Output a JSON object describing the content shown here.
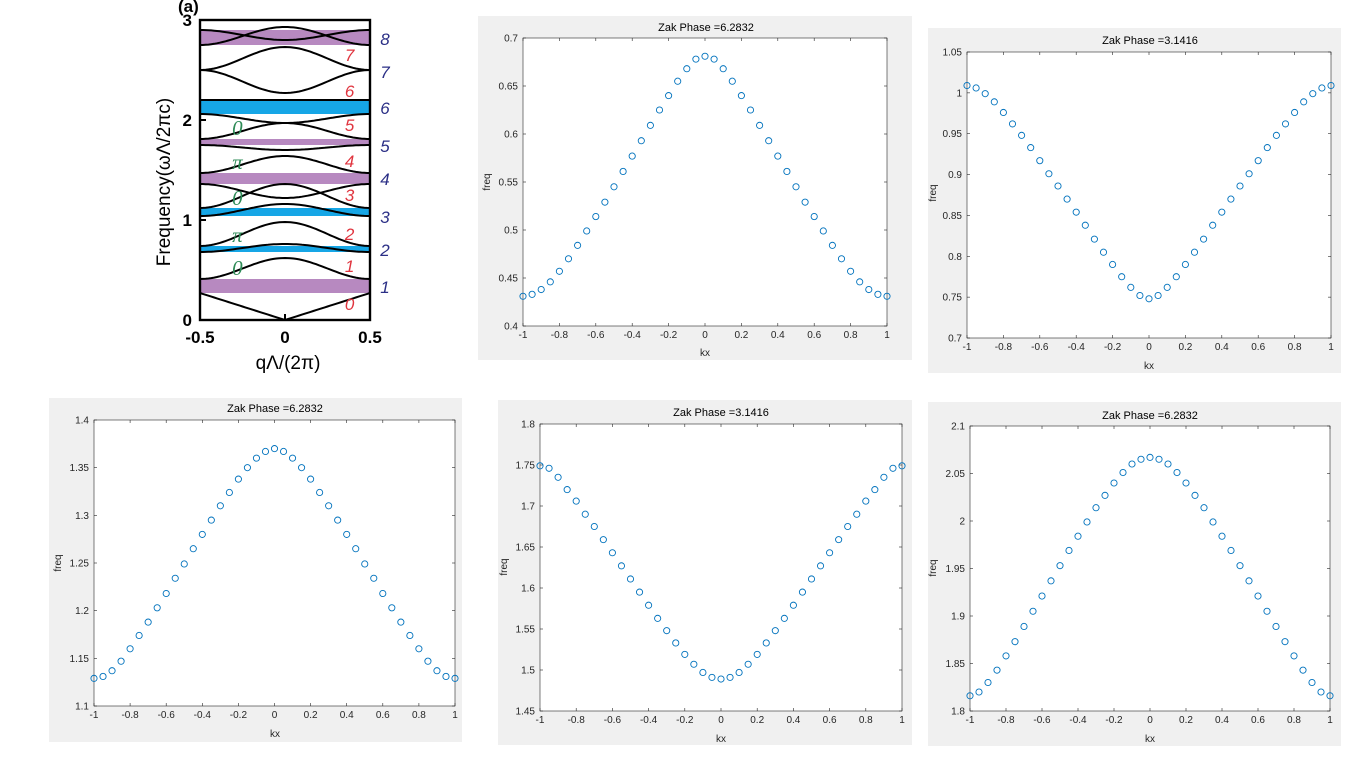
{
  "band_diagram": {
    "corner_label": "(a)",
    "ylabel": "Frequency(ωΛ/2πc)",
    "xlabel": "qΛ/(2π)",
    "x_ticks": [
      "-0.5",
      "0",
      "0.5"
    ],
    "y_ticks": [
      "0",
      "1",
      "2",
      "3"
    ],
    "xlim": [
      -0.5,
      0.5
    ],
    "ylim": [
      0,
      3
    ],
    "gap_colors": {
      "pink": "#b789c0",
      "blue": "#16a6e6"
    },
    "gaps": [
      {
        "lo": 0.27,
        "hi": 0.41,
        "color": "pink"
      },
      {
        "lo": 0.68,
        "hi": 0.74,
        "color": "blue"
      },
      {
        "lo": 1.04,
        "hi": 1.12,
        "color": "blue"
      },
      {
        "lo": 1.36,
        "hi": 1.47,
        "color": "pink"
      },
      {
        "lo": 1.75,
        "hi": 1.81,
        "color": "pink"
      },
      {
        "lo": 2.06,
        "hi": 2.2,
        "color": "blue"
      },
      {
        "lo": 2.75,
        "hi": 2.9,
        "color": "pink"
      }
    ],
    "bands": [
      {
        "edge": 0.27,
        "center": 0.0
      },
      {
        "edge": 0.41,
        "center": 0.62
      },
      {
        "edge": 0.68,
        "center": 0.76
      },
      {
        "edge": 0.74,
        "center": 0.98
      },
      {
        "edge": 1.04,
        "center": 1.16
      },
      {
        "edge": 1.12,
        "center": 1.36
      },
      {
        "edge": 1.36,
        "center": 1.22
      },
      {
        "edge": 1.47,
        "center": 1.64
      },
      {
        "edge": 1.75,
        "center": 1.7
      },
      {
        "edge": 1.81,
        "center": 1.97
      },
      {
        "edge": 2.06,
        "center": 1.97
      },
      {
        "edge": 2.2,
        "center": 2.2
      },
      {
        "edge": 2.5,
        "center": 2.73
      },
      {
        "edge": 2.5,
        "center": 2.27
      },
      {
        "edge": 2.75,
        "center": 2.93
      },
      {
        "edge": 2.9,
        "center": 2.8
      }
    ],
    "band_index_labels": [
      {
        "text": "0",
        "y": 0.16
      },
      {
        "text": "1",
        "y": 0.54
      },
      {
        "text": "2",
        "y": 0.86
      },
      {
        "text": "3",
        "y": 1.25
      },
      {
        "text": "4",
        "y": 1.59
      },
      {
        "text": "5",
        "y": 1.95
      },
      {
        "text": "6",
        "y": 2.29
      },
      {
        "text": "7",
        "y": 2.65
      }
    ],
    "gap_index_labels": [
      {
        "text": "1",
        "y": 0.34
      },
      {
        "text": "2",
        "y": 0.71
      },
      {
        "text": "3",
        "y": 1.04
      },
      {
        "text": "4",
        "y": 1.42
      },
      {
        "text": "5",
        "y": 1.75
      },
      {
        "text": "6",
        "y": 2.13
      },
      {
        "text": "7",
        "y": 2.49
      },
      {
        "text": "8",
        "y": 2.82
      }
    ],
    "zak_labels": [
      {
        "text": "0",
        "y": 0.52
      },
      {
        "text": "π",
        "y": 0.85
      },
      {
        "text": "0",
        "y": 1.22
      },
      {
        "text": "π",
        "y": 1.58
      },
      {
        "text": "0",
        "y": 1.92
      }
    ]
  },
  "chart_data": [
    {
      "type": "scatter",
      "title": "Zak Phase =6.2832",
      "xlabel": "kx",
      "ylabel": "freq",
      "xlim": [
        -1,
        1
      ],
      "ylim": [
        0.4,
        0.7
      ],
      "x_ticks": [
        "-1",
        "-0.8",
        "-0.6",
        "-0.4",
        "-0.2",
        "0",
        "0.2",
        "0.4",
        "0.6",
        "0.8",
        "1"
      ],
      "y_ticks": [
        "0.4",
        "0.45",
        "0.5",
        "0.55",
        "0.6",
        "0.65",
        "0.7"
      ],
      "y_tick_values": [
        0.4,
        0.45,
        0.5,
        0.55,
        0.6,
        0.65,
        0.7
      ],
      "x_points": [
        -1,
        -0.95,
        -0.9,
        -0.85,
        -0.8,
        -0.75,
        -0.7,
        -0.65,
        -0.6,
        -0.55,
        -0.5,
        -0.45,
        -0.4,
        -0.35,
        -0.3,
        -0.25,
        -0.2,
        -0.15,
        -0.1,
        -0.05,
        0,
        0.05,
        0.1,
        0.15,
        0.2,
        0.25,
        0.3,
        0.35,
        0.4,
        0.45,
        0.5,
        0.55,
        0.6,
        0.65,
        0.7,
        0.75,
        0.8,
        0.85,
        0.9,
        0.95,
        1
      ],
      "y_points": [
        0.431,
        0.433,
        0.438,
        0.446,
        0.457,
        0.47,
        0.484,
        0.499,
        0.514,
        0.529,
        0.545,
        0.561,
        0.577,
        0.593,
        0.609,
        0.625,
        0.64,
        0.655,
        0.668,
        0.678,
        0.681,
        0.678,
        0.668,
        0.655,
        0.64,
        0.625,
        0.609,
        0.593,
        0.577,
        0.561,
        0.545,
        0.529,
        0.514,
        0.499,
        0.484,
        0.47,
        0.457,
        0.446,
        0.438,
        0.433,
        0.431
      ]
    },
    {
      "type": "scatter",
      "title": "Zak Phase =3.1416",
      "xlabel": "kx",
      "ylabel": "freq",
      "xlim": [
        -1,
        1
      ],
      "ylim": [
        0.7,
        1.05
      ],
      "x_ticks": [
        "-1",
        "-0.8",
        "-0.6",
        "-0.4",
        "-0.2",
        "0",
        "0.2",
        "0.4",
        "0.6",
        "0.8",
        "1"
      ],
      "y_ticks": [
        "0.7",
        "0.75",
        "0.8",
        "0.85",
        "0.9",
        "0.95",
        "1",
        "1.05"
      ],
      "y_tick_values": [
        0.7,
        0.75,
        0.8,
        0.85,
        0.9,
        0.95,
        1.0,
        1.05
      ],
      "x_points": [
        -1,
        -0.95,
        -0.9,
        -0.85,
        -0.8,
        -0.75,
        -0.7,
        -0.65,
        -0.6,
        -0.55,
        -0.5,
        -0.45,
        -0.4,
        -0.35,
        -0.3,
        -0.25,
        -0.2,
        -0.15,
        -0.1,
        -0.05,
        0,
        0.05,
        0.1,
        0.15,
        0.2,
        0.25,
        0.3,
        0.35,
        0.4,
        0.45,
        0.5,
        0.55,
        0.6,
        0.65,
        0.7,
        0.75,
        0.8,
        0.85,
        0.9,
        0.95,
        1
      ],
      "y_points": [
        1.009,
        1.006,
        0.999,
        0.989,
        0.976,
        0.962,
        0.948,
        0.933,
        0.917,
        0.901,
        0.886,
        0.87,
        0.854,
        0.838,
        0.821,
        0.805,
        0.79,
        0.775,
        0.762,
        0.752,
        0.748,
        0.752,
        0.762,
        0.775,
        0.79,
        0.805,
        0.821,
        0.838,
        0.854,
        0.87,
        0.886,
        0.901,
        0.917,
        0.933,
        0.948,
        0.962,
        0.976,
        0.989,
        0.999,
        1.006,
        1.009
      ]
    },
    {
      "type": "scatter",
      "title": "Zak Phase =6.2832",
      "xlabel": "kx",
      "ylabel": "freq",
      "xlim": [
        -1,
        1
      ],
      "ylim": [
        1.1,
        1.4
      ],
      "x_ticks": [
        "-1",
        "-0.8",
        "-0.6",
        "-0.4",
        "-0.2",
        "0",
        "0.2",
        "0.4",
        "0.6",
        "0.8",
        "1"
      ],
      "y_ticks": [
        "1.1",
        "1.15",
        "1.2",
        "1.25",
        "1.3",
        "1.35",
        "1.4"
      ],
      "y_tick_values": [
        1.1,
        1.15,
        1.2,
        1.25,
        1.3,
        1.35,
        1.4
      ],
      "x_points": [
        -1,
        -0.95,
        -0.9,
        -0.85,
        -0.8,
        -0.75,
        -0.7,
        -0.65,
        -0.6,
        -0.55,
        -0.5,
        -0.45,
        -0.4,
        -0.35,
        -0.3,
        -0.25,
        -0.2,
        -0.15,
        -0.1,
        -0.05,
        0,
        0.05,
        0.1,
        0.15,
        0.2,
        0.25,
        0.3,
        0.35,
        0.4,
        0.45,
        0.5,
        0.55,
        0.6,
        0.65,
        0.7,
        0.75,
        0.8,
        0.85,
        0.9,
        0.95,
        1
      ],
      "y_points": [
        1.129,
        1.131,
        1.137,
        1.147,
        1.16,
        1.174,
        1.188,
        1.203,
        1.218,
        1.234,
        1.249,
        1.265,
        1.28,
        1.295,
        1.31,
        1.324,
        1.338,
        1.35,
        1.36,
        1.367,
        1.37,
        1.367,
        1.36,
        1.35,
        1.338,
        1.324,
        1.31,
        1.295,
        1.28,
        1.265,
        1.249,
        1.234,
        1.218,
        1.203,
        1.188,
        1.174,
        1.16,
        1.147,
        1.137,
        1.131,
        1.129
      ]
    },
    {
      "type": "scatter",
      "title": "Zak Phase =3.1416",
      "xlabel": "kx",
      "ylabel": "freq",
      "xlim": [
        -1,
        1
      ],
      "ylim": [
        1.45,
        1.8
      ],
      "x_ticks": [
        "-1",
        "-0.8",
        "-0.6",
        "-0.4",
        "-0.2",
        "0",
        "0.2",
        "0.4",
        "0.6",
        "0.8",
        "1"
      ],
      "y_ticks": [
        "1.45",
        "1.5",
        "1.55",
        "1.6",
        "1.65",
        "1.7",
        "1.75",
        "1.8"
      ],
      "y_tick_values": [
        1.45,
        1.5,
        1.55,
        1.6,
        1.65,
        1.7,
        1.75,
        1.8
      ],
      "x_points": [
        -1,
        -0.95,
        -0.9,
        -0.85,
        -0.8,
        -0.75,
        -0.7,
        -0.65,
        -0.6,
        -0.55,
        -0.5,
        -0.45,
        -0.4,
        -0.35,
        -0.3,
        -0.25,
        -0.2,
        -0.15,
        -0.1,
        -0.05,
        0,
        0.05,
        0.1,
        0.15,
        0.2,
        0.25,
        0.3,
        0.35,
        0.4,
        0.45,
        0.5,
        0.55,
        0.6,
        0.65,
        0.7,
        0.75,
        0.8,
        0.85,
        0.9,
        0.95,
        1
      ],
      "y_points": [
        1.749,
        1.746,
        1.735,
        1.72,
        1.706,
        1.69,
        1.675,
        1.659,
        1.643,
        1.627,
        1.611,
        1.595,
        1.579,
        1.563,
        1.548,
        1.533,
        1.519,
        1.507,
        1.497,
        1.491,
        1.489,
        1.491,
        1.497,
        1.507,
        1.519,
        1.533,
        1.548,
        1.563,
        1.579,
        1.595,
        1.611,
        1.627,
        1.643,
        1.659,
        1.675,
        1.69,
        1.706,
        1.72,
        1.735,
        1.746,
        1.749
      ]
    },
    {
      "type": "scatter",
      "title": "Zak Phase =6.2832",
      "xlabel": "kx",
      "ylabel": "freq",
      "xlim": [
        -1,
        1
      ],
      "ylim": [
        1.8,
        2.1
      ],
      "x_ticks": [
        "-1",
        "-0.8",
        "-0.6",
        "-0.4",
        "-0.2",
        "0",
        "0.2",
        "0.4",
        "0.6",
        "0.8",
        "1"
      ],
      "y_ticks": [
        "1.8",
        "1.85",
        "1.9",
        "1.95",
        "2",
        "2.05",
        "2.1"
      ],
      "y_tick_values": [
        1.8,
        1.85,
        1.9,
        1.95,
        2.0,
        2.05,
        2.1
      ],
      "x_points": [
        -1,
        -0.95,
        -0.9,
        -0.85,
        -0.8,
        -0.75,
        -0.7,
        -0.65,
        -0.6,
        -0.55,
        -0.5,
        -0.45,
        -0.4,
        -0.35,
        -0.3,
        -0.25,
        -0.2,
        -0.15,
        -0.1,
        -0.05,
        0,
        0.05,
        0.1,
        0.15,
        0.2,
        0.25,
        0.3,
        0.35,
        0.4,
        0.45,
        0.5,
        0.55,
        0.6,
        0.65,
        0.7,
        0.75,
        0.8,
        0.85,
        0.9,
        0.95,
        1
      ],
      "y_points": [
        1.816,
        1.82,
        1.83,
        1.843,
        1.858,
        1.873,
        1.889,
        1.905,
        1.921,
        1.937,
        1.953,
        1.969,
        1.984,
        1.999,
        2.014,
        2.027,
        2.04,
        2.051,
        2.06,
        2.065,
        2.067,
        2.065,
        2.06,
        2.051,
        2.04,
        2.027,
        2.014,
        1.999,
        1.984,
        1.969,
        1.953,
        1.937,
        1.921,
        1.905,
        1.889,
        1.873,
        1.858,
        1.843,
        1.83,
        1.82,
        1.816
      ]
    }
  ],
  "marker_color": "#0072bd"
}
